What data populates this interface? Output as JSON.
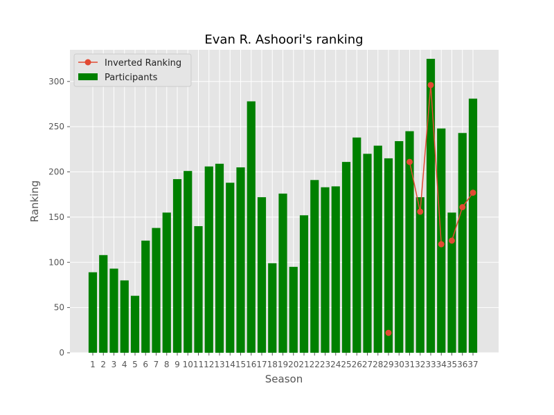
{
  "chart_data": {
    "type": "bar",
    "title": "Evan R. Ashoori's ranking",
    "xlabel": "Season",
    "ylabel": "Ranking",
    "categories": [
      "1",
      "2",
      "3",
      "4",
      "5",
      "6",
      "7",
      "8",
      "9",
      "10",
      "11",
      "12",
      "13",
      "14",
      "15",
      "16",
      "17",
      "18",
      "19",
      "20",
      "21",
      "22",
      "23",
      "24",
      "25",
      "26",
      "27",
      "28",
      "29",
      "30",
      "31",
      "32",
      "33",
      "34",
      "35",
      "36",
      "37"
    ],
    "ylim": [
      0,
      335
    ],
    "yticks": [
      0,
      50,
      100,
      150,
      200,
      250,
      300
    ],
    "grid": true,
    "legend_position": "top-left",
    "series": [
      {
        "name": "Participants",
        "kind": "bar",
        "color": "#008000",
        "values": [
          89,
          108,
          93,
          80,
          63,
          124,
          138,
          155,
          192,
          201,
          140,
          206,
          209,
          188,
          205,
          278,
          172,
          99,
          176,
          95,
          152,
          191,
          183,
          184,
          211,
          238,
          220,
          229,
          215,
          234,
          245,
          172,
          325,
          248,
          155,
          243,
          281
        ]
      },
      {
        "name": "Inverted Ranking",
        "kind": "line",
        "color": "#e24a33",
        "x": [
          "29",
          "31",
          "32",
          "33",
          "34",
          "35",
          "36",
          "37"
        ],
        "values": [
          22,
          211,
          156,
          296,
          120,
          124,
          161,
          177
        ],
        "segments": [
          [
            "31",
            "32",
            "33",
            "34"
          ],
          [
            "35",
            "36",
            "37"
          ]
        ]
      }
    ],
    "colors": {
      "plot_background": "#e5e5e5",
      "grid": "#ffffff"
    }
  }
}
